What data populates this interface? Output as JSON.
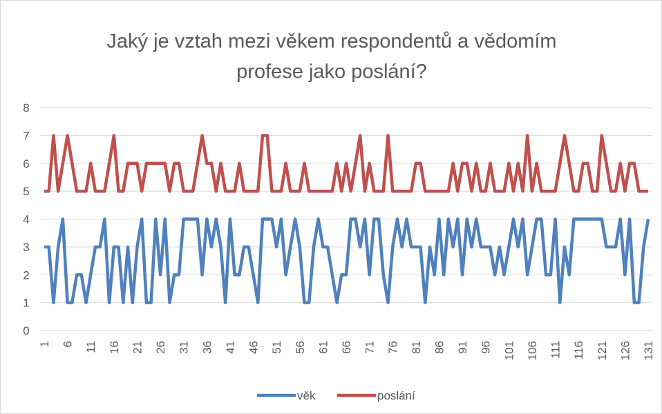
{
  "chart_data": {
    "type": "line",
    "title": "Jaký je vztah mezi věkem respondentů a vědomím profese jako poslání?",
    "categories": [
      1,
      null,
      null,
      null,
      null,
      6,
      null,
      null,
      null,
      null,
      11,
      null,
      null,
      null,
      null,
      16,
      null,
      null,
      null,
      null,
      21,
      null,
      null,
      null,
      null,
      26,
      null,
      null,
      null,
      null,
      31,
      null,
      null,
      null,
      null,
      36,
      null,
      null,
      null,
      null,
      41,
      null,
      null,
      null,
      null,
      46,
      null,
      null,
      null,
      null,
      51,
      null,
      null,
      null,
      null,
      56,
      null,
      null,
      null,
      null,
      61,
      null,
      null,
      null,
      null,
      66,
      null,
      null,
      null,
      null,
      71,
      null,
      null,
      null,
      null,
      76,
      null,
      null,
      null,
      null,
      81,
      null,
      null,
      null,
      null,
      86,
      null,
      null,
      null,
      null,
      91,
      null,
      null,
      null,
      null,
      96,
      null,
      null,
      null,
      null,
      101,
      null,
      null,
      null,
      null,
      106,
      null,
      null,
      null,
      null,
      111,
      null,
      null,
      null,
      null,
      116,
      null,
      null,
      null,
      null,
      121,
      null,
      null,
      null,
      null,
      126,
      null,
      null,
      null,
      null,
      131
    ],
    "series": [
      {
        "name": "věk",
        "color": "#4f81bd",
        "values": [
          3,
          3,
          1,
          3,
          4,
          1,
          1,
          2,
          2,
          1,
          2,
          3,
          3,
          4,
          1,
          3,
          3,
          1,
          3,
          1,
          3,
          4,
          1,
          1,
          4,
          2,
          4,
          1,
          2,
          2,
          4,
          4,
          4,
          4,
          2,
          4,
          3,
          4,
          3,
          1,
          4,
          2,
          2,
          3,
          3,
          2,
          1,
          4,
          4,
          4,
          3,
          4,
          2,
          3,
          4,
          3,
          1,
          1,
          3,
          4,
          3,
          3,
          2,
          1,
          2,
          2,
          4,
          4,
          3,
          4,
          2,
          4,
          4,
          2,
          1,
          3,
          4,
          3,
          4,
          3,
          3,
          3,
          1,
          3,
          2,
          4,
          2,
          4,
          3,
          4,
          2,
          4,
          3,
          4,
          3,
          3,
          3,
          2,
          3,
          2,
          3,
          4,
          3,
          4,
          2,
          3,
          4,
          4,
          2,
          2,
          4,
          1,
          3,
          2,
          4,
          4,
          4,
          4,
          4,
          4,
          4,
          3,
          3,
          3,
          4,
          2,
          4,
          1,
          1,
          3,
          4
        ]
      },
      {
        "name": "poslání",
        "color": "#c0504d",
        "values": [
          5,
          5,
          7,
          5,
          6,
          7,
          6,
          5,
          5,
          5,
          6,
          5,
          5,
          5,
          6,
          7,
          5,
          5,
          6,
          6,
          6,
          5,
          6,
          6,
          6,
          6,
          6,
          5,
          6,
          6,
          5,
          5,
          5,
          6,
          7,
          6,
          6,
          5,
          6,
          5,
          5,
          5,
          6,
          5,
          5,
          5,
          5,
          7,
          7,
          5,
          5,
          5,
          6,
          5,
          5,
          5,
          6,
          5,
          5,
          5,
          5,
          5,
          5,
          6,
          5,
          6,
          5,
          6,
          7,
          5,
          6,
          5,
          5,
          5,
          7,
          5,
          5,
          5,
          5,
          5,
          6,
          6,
          5,
          5,
          5,
          5,
          5,
          5,
          6,
          5,
          6,
          6,
          5,
          6,
          5,
          5,
          6,
          5,
          5,
          5,
          6,
          5,
          6,
          5,
          7,
          5,
          6,
          5,
          5,
          5,
          5,
          6,
          7,
          6,
          5,
          5,
          6,
          6,
          5,
          5,
          7,
          6,
          5,
          5,
          6,
          5,
          6,
          6,
          5,
          5,
          5
        ]
      }
    ],
    "ylim": [
      0,
      8
    ],
    "yticks": [
      0,
      1,
      2,
      3,
      4,
      5,
      6,
      7,
      8
    ],
    "grid": true,
    "legend": "bottom"
  }
}
